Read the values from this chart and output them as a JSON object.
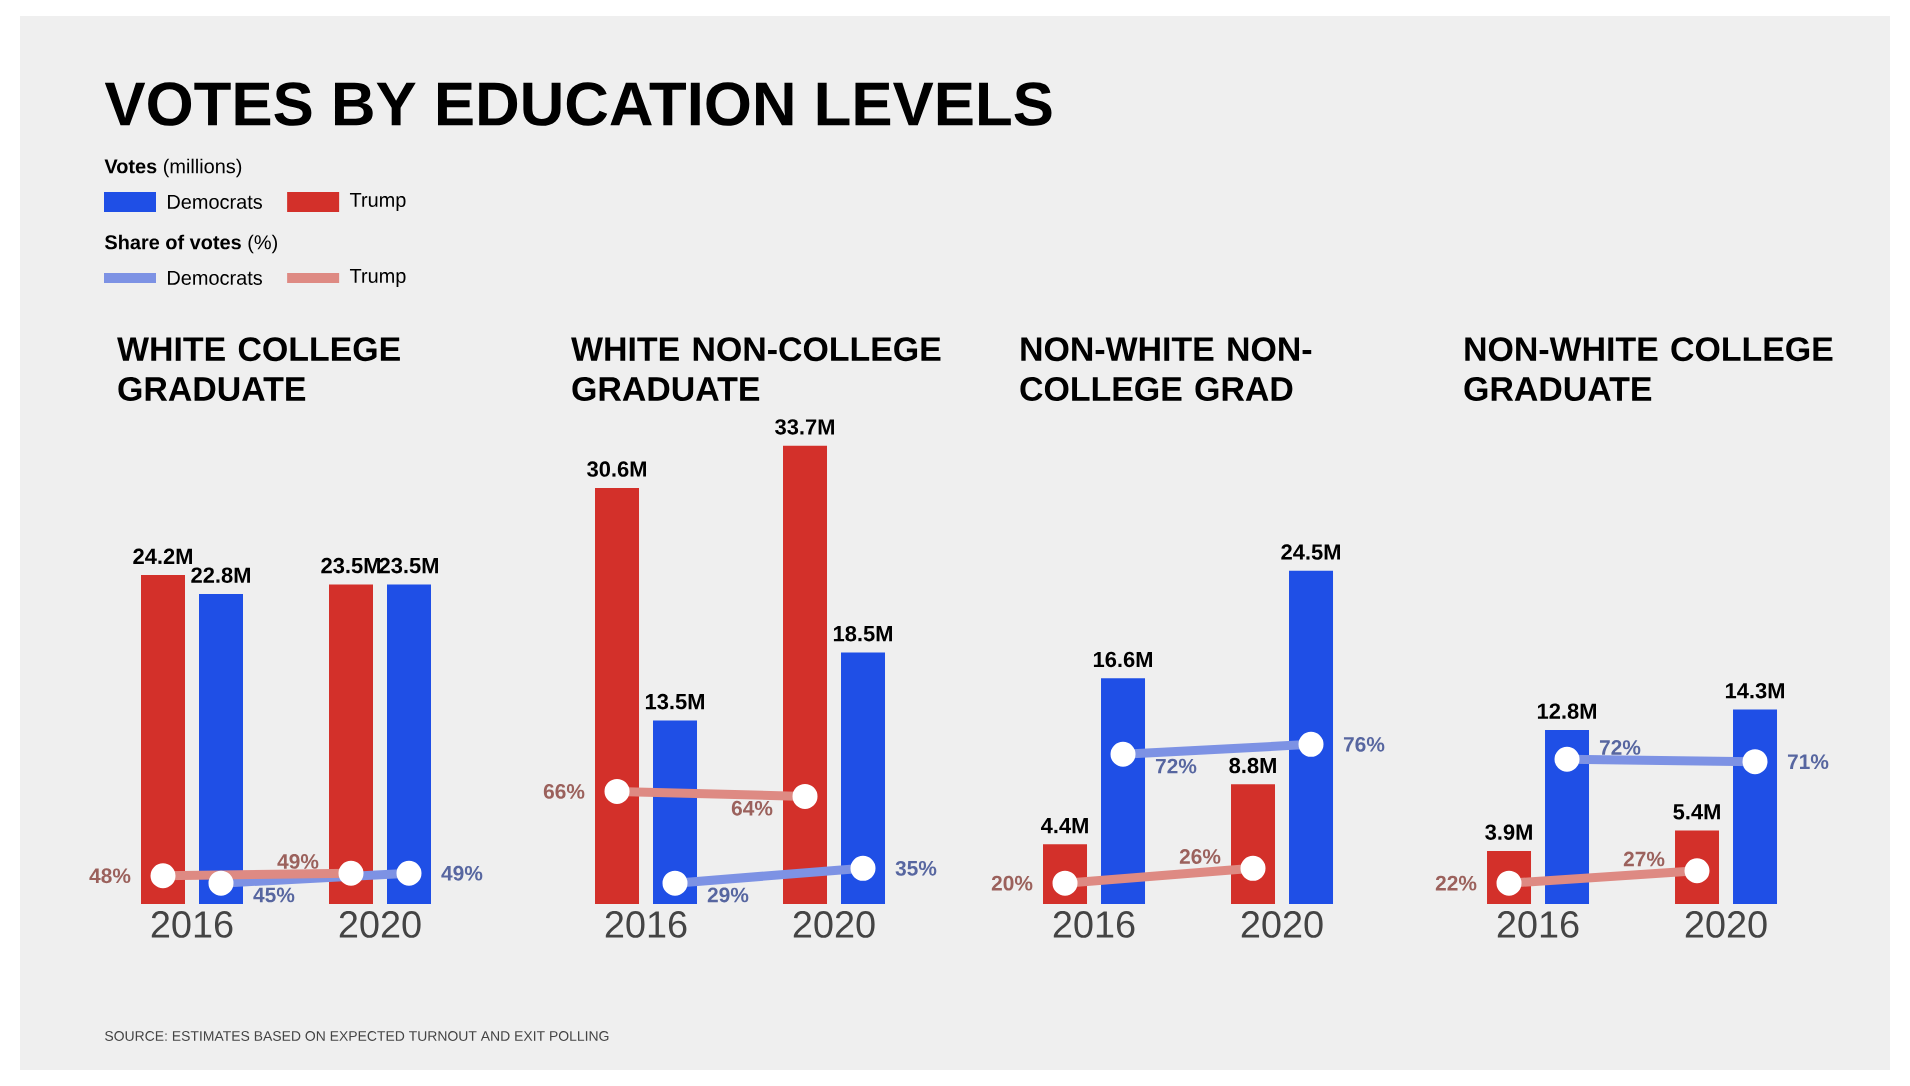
{
  "chart_data": [
    {
      "type": "bar",
      "title": "WHITE COLLEGE GRADUATE",
      "categories": [
        "2016",
        "2020"
      ],
      "tick_labels": "x",
      "legend": "top left",
      "series": [
        {
          "name": "Democrats",
          "color": "#1f4fe6",
          "values": [
            22.8,
            23.5
          ],
          "value_labels": [
            "22.8M",
            "23.5M"
          ]
        },
        {
          "name": "Trump",
          "color": "#d3302a",
          "values": [
            24.2,
            23.5
          ],
          "value_labels": [
            "24.2M",
            "23.5M"
          ]
        },
        {
          "name": "Democrats",
          "type": "line",
          "axis": "y2",
          "marker": "circle",
          "color": "#7d92e4",
          "values": [
            45,
            49
          ],
          "value_labels": [
            "45%",
            "49%"
          ]
        },
        {
          "name": "Trump",
          "type": "line",
          "axis": "y2",
          "marker": "circle",
          "color": "#de8a83",
          "values": [
            48,
            49
          ],
          "value_labels": [
            "48%",
            "49%"
          ]
        }
      ]
    },
    {
      "type": "bar",
      "title": "WHITE NON-COLLEGE GRADUATE",
      "categories": [
        "2016",
        "2020"
      ],
      "tick_labels": "x",
      "series": [
        {
          "color": "#1f4fe6",
          "values": [
            13.5,
            18.5
          ],
          "value_labels": [
            "13.5M",
            "18.5M"
          ]
        },
        {
          "color": "#d3302a",
          "values": [
            30.6,
            33.7
          ],
          "value_labels": [
            "30.6M",
            "33.7M"
          ]
        },
        {
          "type": "line",
          "axis": "y2",
          "marker": "circle",
          "color": "#7d92e4",
          "values": [
            29,
            35
          ],
          "value_labels": [
            "29%",
            "35%"
          ]
        },
        {
          "type": "line",
          "axis": "y2",
          "marker": "circle",
          "color": "#de8a83",
          "values": [
            66,
            64
          ],
          "value_labels": [
            "66%",
            "64%"
          ]
        }
      ]
    },
    {
      "type": "bar",
      "title": "NON-WHITE NON-COLLEGE GRAD",
      "categories": [
        "2016",
        "2020"
      ],
      "tick_labels": "x",
      "series": [
        {
          "color": "#1f4fe6",
          "values": [
            16.6,
            24.5
          ],
          "value_labels": [
            "16.6M",
            "24.5M"
          ]
        },
        {
          "color": "#d3302a",
          "values": [
            4.4,
            8.8
          ],
          "value_labels": [
            "4.4M",
            "8.8M"
          ]
        },
        {
          "type": "line",
          "axis": "y2",
          "marker": "circle",
          "color": "#7d92e4",
          "values": [
            72,
            76
          ],
          "value_labels": [
            "72%",
            "76%"
          ]
        },
        {
          "type": "line",
          "axis": "y2",
          "marker": "circle",
          "color": "#de8a83",
          "values": [
            20,
            26
          ],
          "value_labels": [
            "20%",
            "26%"
          ]
        }
      ]
    },
    {
      "type": "bar",
      "title": "NON-WHITE COLLEGE GRADUATE",
      "categories": [
        "2016",
        "2020"
      ],
      "tick_labels": "x",
      "series": [
        {
          "color": "#1f4fe6",
          "values": [
            12.8,
            14.3
          ],
          "value_labels": [
            "12.8M",
            "14.3M"
          ]
        },
        {
          "color": "#d3302a",
          "values": [
            3.9,
            5.4
          ],
          "value_labels": [
            "3.9M",
            "5.4M"
          ]
        },
        {
          "type": "line",
          "axis": "y2",
          "marker": "circle",
          "color": "#7d92e4",
          "values": [
            72,
            71
          ],
          "value_labels": [
            "72%",
            "71%"
          ]
        },
        {
          "type": "line",
          "axis": "y2",
          "marker": "circle",
          "color": "#de8a83",
          "values": [
            22,
            27
          ],
          "value_labels": [
            "22%",
            "27%"
          ]
        }
      ]
    },
    {
      "type": "other",
      "title": "VOTES BY EDUCATION LEVELS",
      "annotations": [
        "**Votes** (millions)",
        "**Share of votes** (%)",
        "SOURCE: ESTIMATES BASED ON EXPECTED TURNOUT AND EXIT POLLING"
      ]
    }
  ]
}
